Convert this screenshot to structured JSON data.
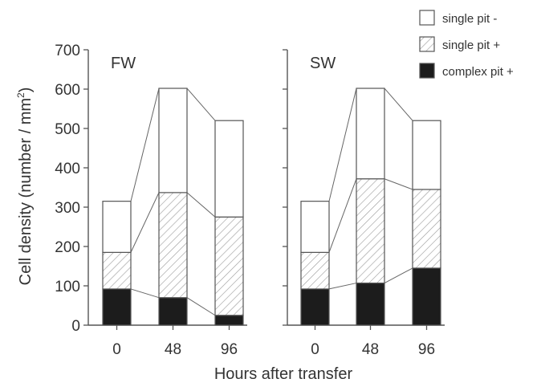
{
  "chart_data": {
    "type": "bar",
    "stacked": true,
    "connector_lines": true,
    "ylabel_prefix": "Cell density (number / mm",
    "ylabel_sup": "2",
    "ylabel_suffix": ")",
    "xlabel": "Hours after transfer",
    "ylim": [
      0,
      700
    ],
    "yticks": [
      "0",
      "100",
      "200",
      "300",
      "400",
      "500",
      "600",
      "700"
    ],
    "categories": [
      "0",
      "48",
      "96"
    ],
    "legend_position": "top-right",
    "legend": [
      {
        "label": "single pit -",
        "fill": "plain",
        "color": "#ffffff"
      },
      {
        "label": "single pit +",
        "fill": "hatched",
        "color": "#ffffff"
      },
      {
        "label": "complex pit +",
        "fill": "solid",
        "color": "#1c1c1c"
      }
    ],
    "panels": [
      {
        "label": "FW",
        "series": [
          {
            "name": "complex pit +",
            "values": [
              92,
              70,
              25
            ]
          },
          {
            "name": "single pit +",
            "values": [
              93,
              267,
              250
            ]
          },
          {
            "name": "single pit -",
            "values": [
              130,
              265,
              245
            ]
          }
        ]
      },
      {
        "label": "SW",
        "series": [
          {
            "name": "complex pit +",
            "values": [
              92,
              107,
              145
            ]
          },
          {
            "name": "single pit +",
            "values": [
              93,
              265,
              200
            ]
          },
          {
            "name": "single pit -",
            "values": [
              130,
              230,
              175
            ]
          }
        ]
      }
    ]
  }
}
